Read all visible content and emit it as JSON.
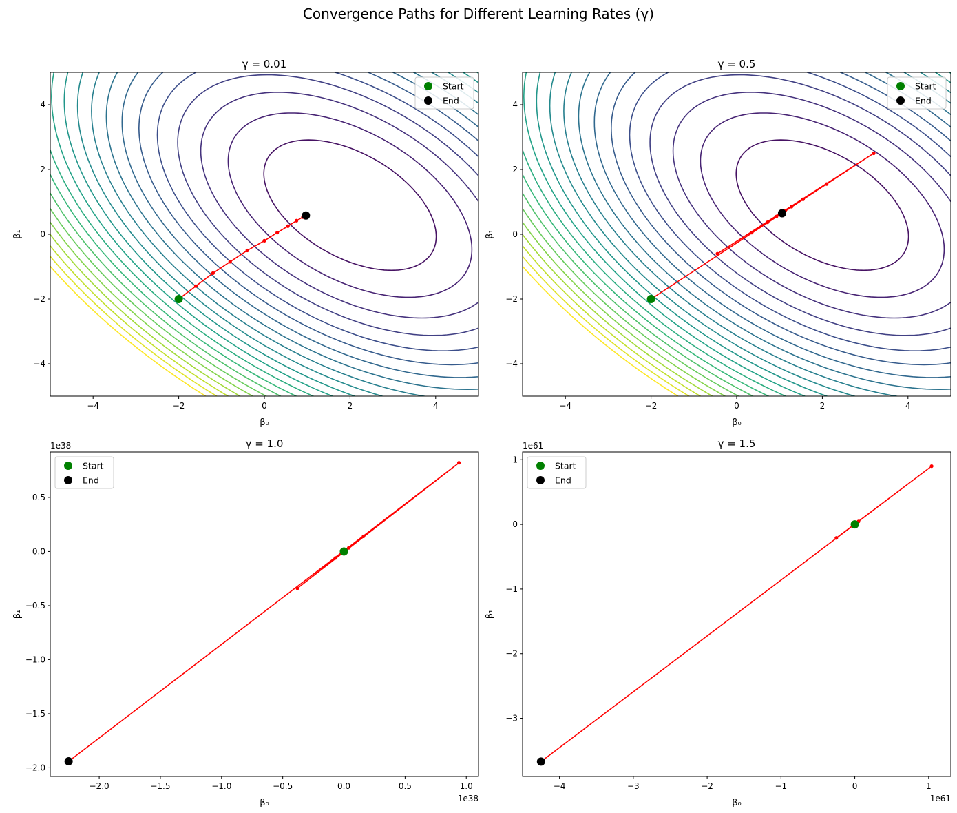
{
  "figure": {
    "suptitle": "Convergence Paths for Different Learning Rates (γ)"
  },
  "legend_labels": {
    "start": "Start",
    "end": "End"
  },
  "colors": {
    "path": "#ff0000",
    "start": "#008000",
    "end": "#000000",
    "contour_cmap": "viridis"
  },
  "chart_data": [
    {
      "type": "line",
      "title": "γ = 0.01",
      "xlabel": "β₀",
      "ylabel": "β₁",
      "xlim": [
        -5,
        5
      ],
      "ylim": [
        -5,
        5
      ],
      "xticks": [
        -4,
        -2,
        0,
        2,
        4
      ],
      "xtick_labels": [
        "−4",
        "−2",
        "0",
        "2",
        "4"
      ],
      "yticks": [
        -4,
        -2,
        0,
        2,
        4
      ],
      "ytick_labels": [
        "−4",
        "−2",
        "0",
        "2",
        "4"
      ],
      "contours": true,
      "legend_position": "upper-right",
      "series": [
        {
          "x": [
            -2.0,
            -1.6,
            -1.2,
            -0.8,
            -0.4,
            0.0,
            0.3,
            0.55,
            0.75,
            0.9,
            0.97
          ],
          "y": [
            -2.0,
            -1.6,
            -1.2,
            -0.85,
            -0.5,
            -0.2,
            0.05,
            0.25,
            0.42,
            0.53,
            0.58
          ]
        }
      ],
      "start": {
        "x": -2.0,
        "y": -2.0
      },
      "end": {
        "x": 0.97,
        "y": 0.58
      }
    },
    {
      "type": "line",
      "title": "γ = 0.5",
      "xlabel": "β₀",
      "ylabel": "β₁",
      "xlim": [
        -5,
        5
      ],
      "ylim": [
        -5,
        5
      ],
      "xticks": [
        -4,
        -2,
        0,
        2,
        4
      ],
      "xtick_labels": [
        "−4",
        "−2",
        "0",
        "2",
        "4"
      ],
      "yticks": [
        -4,
        -2,
        0,
        2,
        4
      ],
      "ytick_labels": [
        "−4",
        "−2",
        "0",
        "2",
        "4"
      ],
      "contours": true,
      "legend_position": "upper-right",
      "series": [
        {
          "x": [
            -2.0,
            3.2,
            -0.45,
            2.1,
            0.35,
            1.55,
            0.72,
            1.28,
            0.93,
            1.13,
            1.02,
            1.06
          ],
          "y": [
            -2.0,
            2.5,
            -0.6,
            1.55,
            0.05,
            1.08,
            0.37,
            0.85,
            0.55,
            0.72,
            0.62,
            0.65
          ]
        }
      ],
      "start": {
        "x": -2.0,
        "y": -2.0
      },
      "end": {
        "x": 1.06,
        "y": 0.65
      }
    },
    {
      "type": "line",
      "title": "γ = 1.0",
      "xlabel": "β₀",
      "ylabel": "β₁",
      "xlim": [
        -2.4,
        1.1
      ],
      "ylim": [
        -2.08,
        0.92
      ],
      "scale_label": "1e38",
      "x_offset_label": "1e38",
      "xticks": [
        -2.0,
        -1.5,
        -1.0,
        -0.5,
        0.0,
        0.5,
        1.0
      ],
      "xtick_labels": [
        "−2.0",
        "−1.5",
        "−1.0",
        "−0.5",
        "0.0",
        "0.5",
        "1.0"
      ],
      "yticks": [
        -2.0,
        -1.5,
        -1.0,
        -0.5,
        0.0,
        0.5
      ],
      "ytick_labels": [
        "−2.0",
        "−1.5",
        "−1.0",
        "−0.5",
        "0.0",
        "0.5"
      ],
      "contours": false,
      "legend_position": "upper-left",
      "series": [
        {
          "x": [
            0,
            0,
            0,
            -0.005,
            0.01,
            -0.02,
            0.04,
            -0.07,
            0.16,
            -0.38,
            0.94,
            -2.25
          ],
          "y": [
            0,
            0,
            0,
            -0.004,
            0.009,
            -0.017,
            0.034,
            -0.06,
            0.14,
            -0.34,
            0.82,
            -1.94
          ]
        }
      ],
      "start": {
        "x": 0.0,
        "y": 0.0
      },
      "end": {
        "x": -2.25,
        "y": -1.94
      }
    },
    {
      "type": "line",
      "title": "γ = 1.5",
      "xlabel": "β₀",
      "ylabel": "β₁",
      "xlim": [
        -4.5,
        1.3
      ],
      "ylim": [
        -3.9,
        1.12
      ],
      "scale_label": "1e61",
      "x_offset_label": "1e61",
      "xticks": [
        -4,
        -3,
        -2,
        -1,
        0,
        1
      ],
      "xtick_labels": [
        "−4",
        "−3",
        "−2",
        "−1",
        "0",
        "1"
      ],
      "yticks": [
        -3,
        -2,
        -1,
        0,
        1
      ],
      "ytick_labels": [
        "−3",
        "−2",
        "−1",
        "0",
        "1"
      ],
      "contours": false,
      "legend_position": "upper-left",
      "series": [
        {
          "x": [
            0,
            0,
            0,
            0.01,
            -0.02,
            0.05,
            -0.25,
            1.04,
            -4.25
          ],
          "y": [
            0,
            0,
            0,
            0.009,
            -0.018,
            0.045,
            -0.21,
            0.9,
            -3.67
          ]
        }
      ],
      "start": {
        "x": 0.0,
        "y": 0.0
      },
      "end": {
        "x": -4.25,
        "y": -3.67
      }
    }
  ]
}
